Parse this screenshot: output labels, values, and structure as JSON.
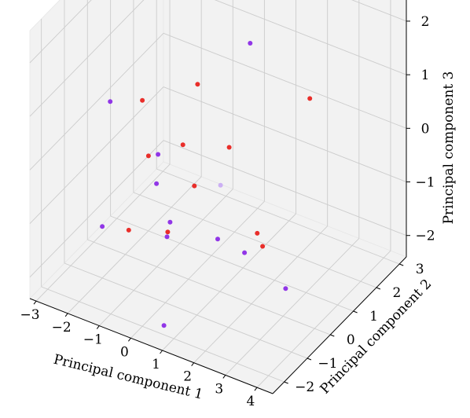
{
  "chart_data": {
    "type": "scatter",
    "projection": "3d",
    "xlabel": "Principal component 1",
    "ylabel": "Principal component 2",
    "zlabel": "Principal component 3",
    "xlim": [
      -3.2,
      4.5
    ],
    "ylim": [
      -2.5,
      3.3
    ],
    "zlim": [
      -2.4,
      2.6
    ],
    "xticks": [
      "-3",
      "-2",
      "-1",
      "0",
      "1",
      "2",
      "3",
      "4"
    ],
    "yticks": [
      "-2",
      "-1",
      "0",
      "1",
      "2",
      "3"
    ],
    "zticks": [
      "-2",
      "-1",
      "0",
      "1",
      "2"
    ],
    "grid": true,
    "colors": {
      "red": "#e8231f",
      "purple": "#8b2be6",
      "lavender": "#c8a9f4",
      "pane": "#f2f2f2",
      "grid": "#cccccc"
    },
    "series": [
      {
        "color": "red",
        "x": 2.04,
        "y": 2.48,
        "z": 0.35
      },
      {
        "color": "red",
        "x": -0.71,
        "y": 1.37,
        "z": 0.47
      },
      {
        "color": "red",
        "x": -1.76,
        "y": 0.41,
        "z": 0.35
      },
      {
        "color": "red",
        "x": -1.0,
        "y": 1.13,
        "z": -0.62
      },
      {
        "color": "red",
        "x": -1.66,
        "y": 0.54,
        "z": -0.72
      },
      {
        "color": "red",
        "x": -0.68,
        "y": 1.19,
        "z": -1.34
      },
      {
        "color": "red",
        "x": 0.97,
        "y": 1.66,
        "z": -2.05
      },
      {
        "color": "red",
        "x": 1.11,
        "y": 1.7,
        "z": -2.28
      },
      {
        "color": "red",
        "x": 0.6,
        "y": 0.95,
        "z": -0.22
      },
      {
        "color": "red",
        "x": -1.65,
        "y": -0.33,
        "z": -1.72
      },
      {
        "color": "red",
        "x": -0.34,
        "y": -0.43,
        "z": -1.41
      },
      {
        "color": "purple",
        "x": 0.38,
        "y": 2.16,
        "z": 1.14
      },
      {
        "color": "purple",
        "x": -2.23,
        "y": -0.34,
        "z": 0.55
      },
      {
        "color": "purple",
        "x": -1.45,
        "y": 0.67,
        "z": -0.7
      },
      {
        "color": "purple",
        "x": -1.48,
        "y": 0.64,
        "z": -1.24
      },
      {
        "color": "purple",
        "x": -2.22,
        "y": -0.7,
        "z": -1.62
      },
      {
        "color": "purple",
        "x": 1.21,
        "y": 0.78,
        "z": -1.97
      },
      {
        "color": "purple",
        "x": 2.55,
        "y": 0.73,
        "z": -2.31
      },
      {
        "color": "purple",
        "x": 0.82,
        "y": 0.15,
        "z": -1.53
      },
      {
        "color": "purple",
        "x": -0.47,
        "y": -0.15,
        "z": -1.38
      },
      {
        "color": "purple",
        "x": -0.54,
        "y": -0.19,
        "z": -1.65
      },
      {
        "color": "purple",
        "x": 0.32,
        "y": -1.5,
        "z": -2.53
      },
      {
        "color": "lavender",
        "x": 0.23,
        "y": 1.08,
        "z": -1.07
      }
    ]
  }
}
